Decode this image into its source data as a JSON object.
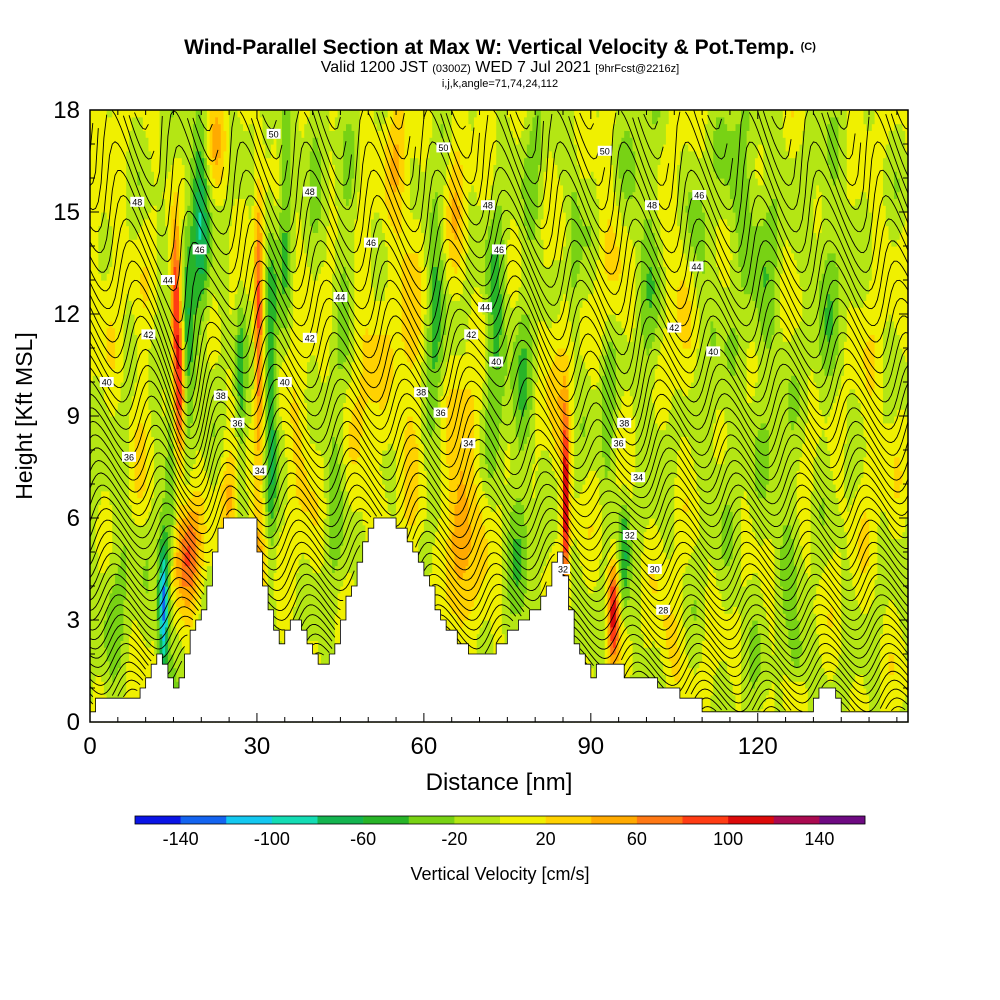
{
  "title": {
    "main": "Wind-Parallel Section at Max W: Vertical Velocity & Pot.Temp.",
    "main_tag": "(C)",
    "valid_prefix": "Valid 1200 JST",
    "valid_utc": "(0300Z)",
    "valid_date": "WED 7 Jul 2021",
    "forecast": "[9hrFcst@2216z]",
    "indices": "i,j,k,angle=71,74,24,112"
  },
  "chart_data": {
    "type": "heatmap",
    "xlabel": "Distance [nm]",
    "ylabel": "Height [Kft MSL]",
    "xlim": [
      0,
      147
    ],
    "ylim": [
      0,
      18
    ],
    "x_ticks": [
      "0",
      "30",
      "60",
      "90",
      "120"
    ],
    "y_ticks": [
      "0",
      "3",
      "6",
      "9",
      "12",
      "15",
      "18"
    ],
    "colorbar": {
      "label": "Vertical Velocity [cm/s]",
      "tick_labels": [
        "-140",
        "-100",
        "-60",
        "-20",
        "20",
        "60",
        "100",
        "140"
      ],
      "levels": [
        -160,
        -140,
        -120,
        -100,
        -80,
        -60,
        -40,
        -20,
        0,
        20,
        40,
        60,
        80,
        100,
        120,
        140,
        160
      ],
      "colors": [
        "#0a14e6",
        "#1464f0",
        "#14c8f0",
        "#14dcb4",
        "#14b450",
        "#28b428",
        "#78d214",
        "#b4e614",
        "#f0f000",
        "#ffd200",
        "#ffaa00",
        "#ff7814",
        "#ff3c14",
        "#dc0a0a",
        "#aa0a50",
        "#6e0a82"
      ]
    },
    "terrain_kft": [
      [
        0,
        0.3
      ],
      [
        1,
        0.7
      ],
      [
        8,
        0.7
      ],
      [
        9,
        1.0
      ],
      [
        10,
        1.3
      ],
      [
        11,
        1.7
      ],
      [
        12,
        2.0
      ],
      [
        13,
        1.7
      ],
      [
        14,
        1.3
      ],
      [
        15,
        1.0
      ],
      [
        16,
        1.3
      ],
      [
        17,
        2.0
      ],
      [
        18,
        2.7
      ],
      [
        19,
        3.0
      ],
      [
        20,
        3.3
      ],
      [
        21,
        4.0
      ],
      [
        22,
        5.0
      ],
      [
        23,
        5.7
      ],
      [
        24,
        6.0
      ],
      [
        29,
        6.0
      ],
      [
        30,
        5.0
      ],
      [
        31,
        4.0
      ],
      [
        32,
        3.3
      ],
      [
        33,
        2.7
      ],
      [
        34,
        2.3
      ],
      [
        35,
        2.7
      ],
      [
        36,
        3.0
      ],
      [
        37,
        3.0
      ],
      [
        38,
        2.7
      ],
      [
        39,
        2.3
      ],
      [
        40,
        2.0
      ],
      [
        41,
        1.7
      ],
      [
        43,
        2.0
      ],
      [
        44,
        2.3
      ],
      [
        45,
        3.0
      ],
      [
        46,
        3.7
      ],
      [
        47,
        4.0
      ],
      [
        48,
        4.7
      ],
      [
        49,
        5.3
      ],
      [
        50,
        5.7
      ],
      [
        51,
        6.0
      ],
      [
        54,
        6.0
      ],
      [
        55,
        5.7
      ],
      [
        57,
        5.3
      ],
      [
        58,
        5.0
      ],
      [
        59,
        4.7
      ],
      [
        60,
        4.3
      ],
      [
        61,
        4.0
      ],
      [
        62,
        3.3
      ],
      [
        63,
        3.0
      ],
      [
        64,
        2.7
      ],
      [
        66,
        2.3
      ],
      [
        68,
        2.0
      ],
      [
        71,
        2.0
      ],
      [
        73,
        2.3
      ],
      [
        75,
        2.7
      ],
      [
        77,
        3.0
      ],
      [
        79,
        3.3
      ],
      [
        81,
        3.7
      ],
      [
        82,
        4.0
      ],
      [
        83,
        4.7
      ],
      [
        84,
        5.0
      ],
      [
        85,
        4.3
      ],
      [
        86,
        3.3
      ],
      [
        87,
        2.3
      ],
      [
        88,
        2.0
      ],
      [
        89,
        1.7
      ],
      [
        90,
        1.3
      ],
      [
        91,
        1.7
      ],
      [
        95,
        1.7
      ],
      [
        96,
        1.3
      ],
      [
        100,
        1.3
      ],
      [
        102,
        1.0
      ],
      [
        106,
        0.7
      ],
      [
        108,
        0.7
      ],
      [
        110,
        0.3
      ],
      [
        126,
        0.3
      ],
      [
        127,
        0.3
      ],
      [
        128,
        0.3
      ],
      [
        130,
        0.7
      ],
      [
        131,
        1.0
      ],
      [
        133,
        1.0
      ],
      [
        134,
        0.7
      ],
      [
        135,
        0.3
      ],
      [
        147,
        0.3
      ]
    ],
    "pot_temp_labels": [
      {
        "text": "48",
        "x": 8.5,
        "y": 15.3
      },
      {
        "text": "44",
        "x": 14.0,
        "y": 13.0
      },
      {
        "text": "46",
        "x": 19.7,
        "y": 13.9
      },
      {
        "text": "42",
        "x": 10.5,
        "y": 11.4
      },
      {
        "text": "40",
        "x": 3.0,
        "y": 10.0
      },
      {
        "text": "38",
        "x": 23.5,
        "y": 9.6
      },
      {
        "text": "36",
        "x": 7.0,
        "y": 7.8
      },
      {
        "text": "36",
        "x": 26.5,
        "y": 8.8
      },
      {
        "text": "34",
        "x": 30.5,
        "y": 7.4
      },
      {
        "text": "50",
        "x": 33.0,
        "y": 17.3
      },
      {
        "text": "48",
        "x": 39.5,
        "y": 15.6
      },
      {
        "text": "42",
        "x": 39.5,
        "y": 11.3
      },
      {
        "text": "40",
        "x": 35.0,
        "y": 10.0
      },
      {
        "text": "44",
        "x": 45.0,
        "y": 12.5
      },
      {
        "text": "46",
        "x": 50.5,
        "y": 14.1
      },
      {
        "text": "38",
        "x": 59.5,
        "y": 9.7
      },
      {
        "text": "36",
        "x": 63.0,
        "y": 9.1
      },
      {
        "text": "50",
        "x": 63.5,
        "y": 16.9
      },
      {
        "text": "48",
        "x": 71.5,
        "y": 15.2
      },
      {
        "text": "46",
        "x": 73.5,
        "y": 13.9
      },
      {
        "text": "44",
        "x": 71.0,
        "y": 12.2
      },
      {
        "text": "42",
        "x": 68.5,
        "y": 11.4
      },
      {
        "text": "40",
        "x": 73.0,
        "y": 10.6
      },
      {
        "text": "34",
        "x": 68.0,
        "y": 8.2
      },
      {
        "text": "32",
        "x": 85.0,
        "y": 4.5
      },
      {
        "text": "50",
        "x": 92.5,
        "y": 16.8
      },
      {
        "text": "48",
        "x": 101.0,
        "y": 15.2
      },
      {
        "text": "46",
        "x": 109.5,
        "y": 15.5
      },
      {
        "text": "44",
        "x": 109.0,
        "y": 13.4
      },
      {
        "text": "42",
        "x": 105.0,
        "y": 11.6
      },
      {
        "text": "40",
        "x": 112.0,
        "y": 10.9
      },
      {
        "text": "38",
        "x": 96.0,
        "y": 8.8
      },
      {
        "text": "36",
        "x": 95.0,
        "y": 8.2
      },
      {
        "text": "34",
        "x": 98.5,
        "y": 7.2
      },
      {
        "text": "32",
        "x": 97.0,
        "y": 5.5
      },
      {
        "text": "30",
        "x": 101.5,
        "y": 4.5
      },
      {
        "text": "28",
        "x": 103.0,
        "y": 3.3
      }
    ]
  }
}
